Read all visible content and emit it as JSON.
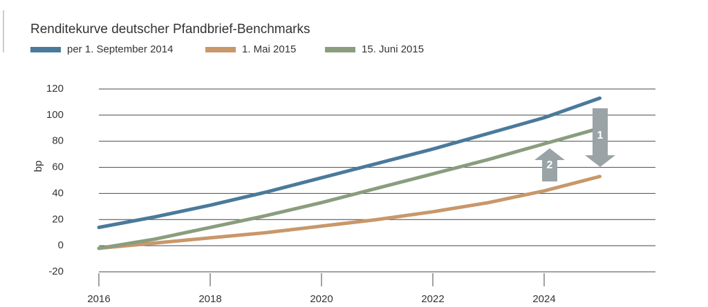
{
  "chart_data": {
    "type": "line",
    "title": "Renditekurve deutscher Pfandbrief-Benchmarks",
    "y_label": "bp",
    "x": [
      2016,
      2017,
      2018,
      2019,
      2020,
      2021,
      2022,
      2023,
      2024,
      2025
    ],
    "series": [
      {
        "name": "per 1. September 2014",
        "color": "#4a7a9b",
        "values": [
          14,
          22,
          31,
          41,
          52,
          63,
          74,
          86,
          98,
          113
        ]
      },
      {
        "name": "1. Mai 2015",
        "color": "#c9976a",
        "values": [
          -2,
          2,
          6,
          10,
          15,
          20,
          26,
          33,
          42,
          53
        ]
      },
      {
        "name": "15. Juni 2015",
        "color": "#8a9d7e",
        "values": [
          -2,
          5,
          14,
          23,
          33,
          44,
          55,
          66,
          78,
          90
        ]
      }
    ],
    "annotations": [
      "1",
      "2"
    ],
    "xlim": [
      2016,
      2026
    ],
    "xticks": [
      2016,
      2018,
      2020,
      2022,
      2024
    ],
    "ylim": [
      -20,
      120
    ],
    "yticks": [
      -20,
      0,
      20,
      40,
      60,
      80,
      100,
      120
    ],
    "grid": true
  }
}
